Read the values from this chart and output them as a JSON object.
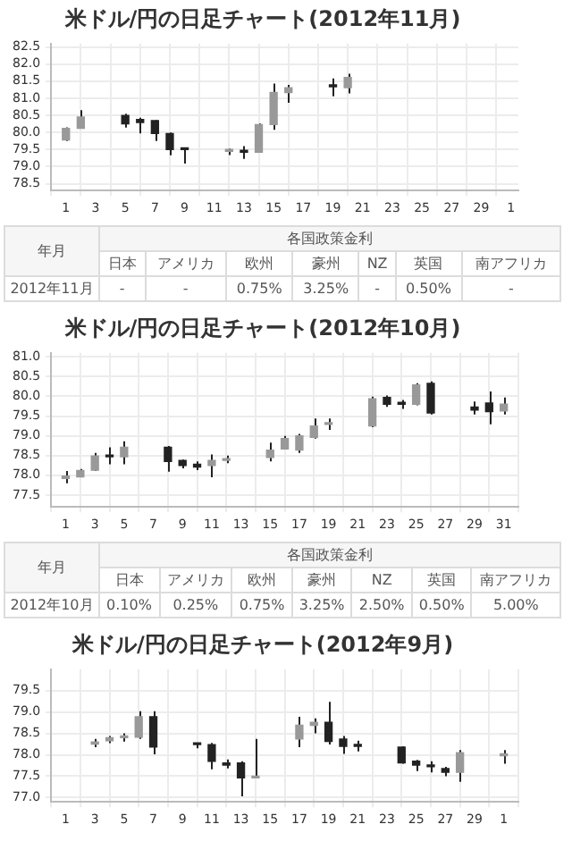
{
  "chart_data": [
    {
      "type": "candlestick",
      "title": "米ドル/円の日足チャート(2012年11月)",
      "color": "#222222",
      "grid": true,
      "colors": [
        "#999999",
        "#999999",
        "#222222",
        "#222222",
        "#222222",
        "#222222",
        "#222222",
        "#999999",
        "#222222",
        "#999999",
        "#999999",
        "#999999",
        "#222222",
        "#999999"
      ],
      "x": [
        "2012-11-01",
        "2012-11-02",
        "2012-11-05",
        "2012-11-06",
        "2012-11-07",
        "2012-11-08",
        "2012-11-09",
        "2012-11-12",
        "2012-11-13",
        "2012-11-14",
        "2012-11-15",
        "2012-11-16",
        "2012-11-19",
        "2012-11-20"
      ],
      "ohlc": [
        [
          79.78,
          80.15,
          79.75,
          80.12
        ],
        [
          80.12,
          80.65,
          80.11,
          80.45
        ],
        [
          80.5,
          80.55,
          80.14,
          80.25
        ],
        [
          80.38,
          80.43,
          79.97,
          80.29
        ],
        [
          80.35,
          80.36,
          79.75,
          79.97
        ],
        [
          79.97,
          80.0,
          79.33,
          79.5
        ],
        [
          79.53,
          79.55,
          79.09,
          79.5
        ],
        [
          79.45,
          79.53,
          79.34,
          79.48
        ],
        [
          79.48,
          79.6,
          79.23,
          79.42
        ],
        [
          79.42,
          80.26,
          79.41,
          80.23
        ],
        [
          80.23,
          81.43,
          80.08,
          81.17
        ],
        [
          81.17,
          81.39,
          80.87,
          81.31
        ],
        [
          81.36,
          81.58,
          81.06,
          81.34
        ],
        [
          81.31,
          81.72,
          81.14,
          81.61
        ]
      ],
      "xlim": [
        "2012-10-31",
        "2012-12-01T12:00"
      ],
      "xticks": [
        {
          "value": "2012-11-01",
          "label": "1"
        },
        {
          "value": "2012-11-03",
          "label": "3"
        },
        {
          "value": "2012-11-05",
          "label": "5"
        },
        {
          "value": "2012-11-07",
          "label": "7"
        },
        {
          "value": "2012-11-09",
          "label": "9"
        },
        {
          "value": "2012-11-11",
          "label": "11"
        },
        {
          "value": "2012-11-13",
          "label": "13"
        },
        {
          "value": "2012-11-15",
          "label": "15"
        },
        {
          "value": "2012-11-17",
          "label": "17"
        },
        {
          "value": "2012-11-19",
          "label": "19"
        },
        {
          "value": "2012-11-21",
          "label": "21"
        },
        {
          "value": "2012-11-23",
          "label": "23"
        },
        {
          "value": "2012-11-25",
          "label": "25"
        },
        {
          "value": "2012-11-27",
          "label": "27"
        },
        {
          "value": "2012-11-29",
          "label": "29"
        },
        {
          "value": "2012-12-01",
          "label": "1"
        }
      ],
      "ylim": [
        78.3,
        82.6
      ],
      "yticks": [
        78.5,
        {
          "value": 79,
          "label": "79.0"
        },
        79.5,
        {
          "value": 80,
          "label": "80.0"
        },
        80.5,
        {
          "value": 81,
          "label": "81.0"
        },
        81.5,
        {
          "value": 82,
          "label": "82.0"
        },
        82.5
      ]
    },
    {
      "type": "other",
      "title": "各国政策金利",
      "ylabel": "年月",
      "categories": [
        "日本",
        "アメリカ",
        "欧州",
        "豪州",
        "NZ",
        "英国",
        "南アフリカ"
      ],
      "y_categories": [
        "2012年11月"
      ],
      "cell_labels": [
        [
          "-",
          "-",
          "0.75%",
          "3.25%",
          "-",
          "0.50%",
          "-"
        ]
      ]
    },
    {
      "type": "candlestick",
      "title": "米ドル/円の日足チャート(2012年10月)",
      "color": "#222222",
      "grid": true,
      "colors": [
        "#999999",
        "#999999",
        "#999999",
        "#222222",
        "#999999",
        "#222222",
        "#222222",
        "#222222",
        "#999999",
        "#999999",
        "#999999",
        "#999999",
        "#999999",
        "#999999",
        "#999999",
        "#999999",
        "#222222",
        "#222222",
        "#999999",
        "#222222",
        "#222222",
        "#222222",
        "#999999"
      ],
      "x": [
        "2012-10-01",
        "2012-10-02",
        "2012-10-03",
        "2012-10-04",
        "2012-10-05",
        "2012-10-08",
        "2012-10-09",
        "2012-10-10",
        "2012-10-11",
        "2012-10-12",
        "2012-10-15",
        "2012-10-16",
        "2012-10-17",
        "2012-10-18",
        "2012-10-19",
        "2012-10-22",
        "2012-10-23",
        "2012-10-24",
        "2012-10-25",
        "2012-10-26",
        "2012-10-29",
        "2012-10-30",
        "2012-10-31"
      ],
      "ohlc": [
        [
          77.92,
          78.11,
          77.8,
          77.98
        ],
        [
          77.96,
          78.16,
          77.96,
          78.12
        ],
        [
          78.13,
          78.57,
          78.11,
          78.49
        ],
        [
          78.49,
          78.71,
          78.28,
          78.47
        ],
        [
          78.47,
          78.86,
          78.28,
          78.71
        ],
        [
          78.71,
          78.74,
          78.09,
          78.35
        ],
        [
          78.38,
          78.4,
          78.18,
          78.25
        ],
        [
          78.28,
          78.35,
          78.13,
          78.21
        ],
        [
          78.25,
          78.53,
          77.95,
          78.38
        ],
        [
          78.38,
          78.5,
          78.31,
          78.42
        ],
        [
          78.45,
          78.83,
          78.35,
          78.64
        ],
        [
          78.67,
          79.0,
          78.67,
          78.93
        ],
        [
          78.64,
          79.05,
          78.57,
          79.0
        ],
        [
          78.96,
          79.44,
          78.93,
          79.25
        ],
        [
          79.29,
          79.44,
          79.15,
          79.29
        ],
        [
          79.25,
          79.99,
          79.22,
          79.94
        ],
        [
          79.97,
          80.02,
          79.73,
          79.8
        ],
        [
          79.83,
          79.91,
          79.68,
          79.8
        ],
        [
          79.8,
          80.33,
          79.77,
          80.29
        ],
        [
          80.33,
          80.38,
          79.54,
          79.58
        ],
        [
          79.73,
          79.87,
          79.54,
          79.65
        ],
        [
          79.83,
          80.12,
          79.29,
          79.61
        ],
        [
          79.63,
          79.97,
          79.54,
          79.8
        ]
      ],
      "xlim": [
        "2012-09-30",
        "2012-11-01"
      ],
      "xticks": [
        {
          "value": "2012-10-01",
          "label": "1"
        },
        {
          "value": "2012-10-03",
          "label": "3"
        },
        {
          "value": "2012-10-05",
          "label": "5"
        },
        {
          "value": "2012-10-07",
          "label": "7"
        },
        {
          "value": "2012-10-09",
          "label": "9"
        },
        {
          "value": "2012-10-11",
          "label": "11"
        },
        {
          "value": "2012-10-13",
          "label": "13"
        },
        {
          "value": "2012-10-15",
          "label": "15"
        },
        {
          "value": "2012-10-17",
          "label": "17"
        },
        {
          "value": "2012-10-19",
          "label": "19"
        },
        {
          "value": "2012-10-21",
          "label": "21"
        },
        {
          "value": "2012-10-23",
          "label": "23"
        },
        {
          "value": "2012-10-25",
          "label": "25"
        },
        {
          "value": "2012-10-27",
          "label": "27"
        },
        {
          "value": "2012-10-29",
          "label": "29"
        },
        {
          "value": "2012-10-31",
          "label": "31"
        }
      ],
      "ylim": [
        77.2,
        81.1
      ],
      "yticks": [
        77.5,
        {
          "value": 78,
          "label": "78.0"
        },
        78.5,
        {
          "value": 79,
          "label": "79.0"
        },
        79.5,
        {
          "value": 80,
          "label": "80.0"
        },
        80.5,
        {
          "value": 81,
          "label": "81.0"
        }
      ]
    },
    {
      "type": "other",
      "title": "各国政策金利",
      "ylabel": "年月",
      "categories": [
        "日本",
        "アメリカ",
        "欧州",
        "豪州",
        "NZ",
        "英国",
        "南アフリカ"
      ],
      "y_categories": [
        "2012年10月"
      ],
      "cell_labels": [
        [
          "0.10%",
          "0.25%",
          "0.75%",
          "3.25%",
          "2.50%",
          "0.50%",
          "5.00%"
        ]
      ]
    },
    {
      "type": "candlestick",
      "title": "米ドル/円の日足チャート(2012年9月)",
      "color": "#222222",
      "grid": true,
      "colors": [
        "#999999",
        "#999999",
        "#999999",
        "#999999",
        "#222222",
        "#222222",
        "#222222",
        "#222222",
        "#222222",
        "#999999",
        "#999999",
        "#999999",
        "#222222",
        "#222222",
        "#222222",
        "#222222",
        "#222222",
        "#222222",
        "#222222",
        "#999999",
        "#999999"
      ],
      "x": [
        "2012-09-03",
        "2012-09-04",
        "2012-09-05",
        "2012-09-06",
        "2012-09-07",
        "2012-09-10",
        "2012-09-11",
        "2012-09-12",
        "2012-09-13",
        "2012-09-14",
        "2012-09-17",
        "2012-09-18",
        "2012-09-19",
        "2012-09-20",
        "2012-09-21",
        "2012-09-24",
        "2012-09-25",
        "2012-09-26",
        "2012-09-27",
        "2012-09-28",
        "2012-10-01"
      ],
      "ohlc": [
        [
          78.25,
          78.37,
          78.18,
          78.3
        ],
        [
          78.33,
          78.44,
          78.27,
          78.4
        ],
        [
          78.4,
          78.5,
          78.31,
          78.41
        ],
        [
          78.41,
          79.02,
          78.37,
          78.89
        ],
        [
          78.89,
          79.02,
          78.01,
          78.18
        ],
        [
          78.27,
          78.28,
          78.15,
          78.24
        ],
        [
          78.24,
          78.28,
          77.66,
          77.85
        ],
        [
          77.81,
          77.89,
          77.68,
          77.76
        ],
        [
          77.81,
          77.85,
          77.03,
          77.46
        ],
        [
          77.46,
          78.37,
          77.46,
          77.48
        ],
        [
          78.37,
          78.89,
          78.18,
          78.69
        ],
        [
          78.69,
          78.85,
          78.5,
          78.76
        ],
        [
          78.76,
          79.24,
          78.24,
          78.31
        ],
        [
          78.37,
          78.44,
          78.02,
          78.2
        ],
        [
          78.24,
          78.33,
          78.08,
          78.2
        ],
        [
          78.18,
          78.2,
          77.79,
          77.81
        ],
        [
          77.85,
          77.88,
          77.62,
          77.76
        ],
        [
          77.76,
          77.85,
          77.59,
          77.72
        ],
        [
          77.68,
          77.72,
          77.5,
          77.59
        ],
        [
          77.59,
          78.11,
          77.37,
          78.05
        ],
        [
          77.98,
          78.11,
          77.79,
          78.02
        ]
      ],
      "xlim": [
        "2012-08-31",
        "2012-10-02"
      ],
      "xticks": [
        {
          "value": "2012-09-01",
          "label": "1"
        },
        {
          "value": "2012-09-03",
          "label": "3"
        },
        {
          "value": "2012-09-05",
          "label": "5"
        },
        {
          "value": "2012-09-07",
          "label": "7"
        },
        {
          "value": "2012-09-09",
          "label": "9"
        },
        {
          "value": "2012-09-11",
          "label": "11"
        },
        {
          "value": "2012-09-13",
          "label": "13"
        },
        {
          "value": "2012-09-15",
          "label": "15"
        },
        {
          "value": "2012-09-17",
          "label": "17"
        },
        {
          "value": "2012-09-19",
          "label": "19"
        },
        {
          "value": "2012-09-21",
          "label": "21"
        },
        {
          "value": "2012-09-23",
          "label": "23"
        },
        {
          "value": "2012-09-25",
          "label": "25"
        },
        {
          "value": "2012-09-27",
          "label": "27"
        },
        {
          "value": "2012-09-29",
          "label": "29"
        },
        {
          "value": "2012-10-01",
          "label": "1"
        }
      ],
      "ylim": [
        76.9,
        80.0
      ],
      "yticks": [
        {
          "value": 77,
          "label": "77.0"
        },
        77.5,
        {
          "value": 78,
          "label": "78.0"
        },
        78.5,
        {
          "value": 79,
          "label": "79.0"
        },
        79.5
      ]
    }
  ]
}
